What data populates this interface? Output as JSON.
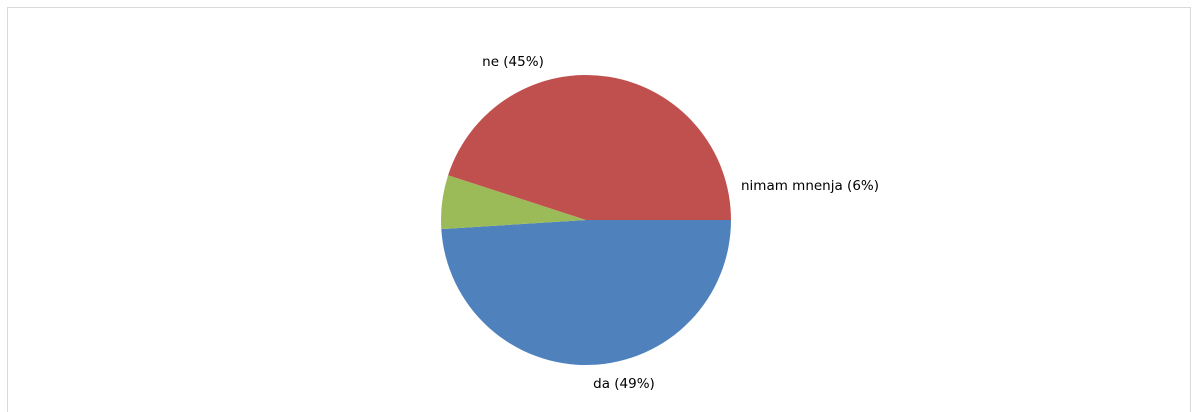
{
  "chart_data": {
    "type": "pie",
    "title": "",
    "slices": [
      {
        "label": "da (49%)",
        "value": 49,
        "color": "#4F81BD"
      },
      {
        "label": "nimam mnenja (6%)",
        "value": 6,
        "color": "#9BBB59"
      },
      {
        "label": "ne (45%)",
        "value": 45,
        "color": "#C0504D"
      }
    ],
    "start_angle_deg": 0,
    "direction": "clockwise",
    "legend": "none"
  }
}
